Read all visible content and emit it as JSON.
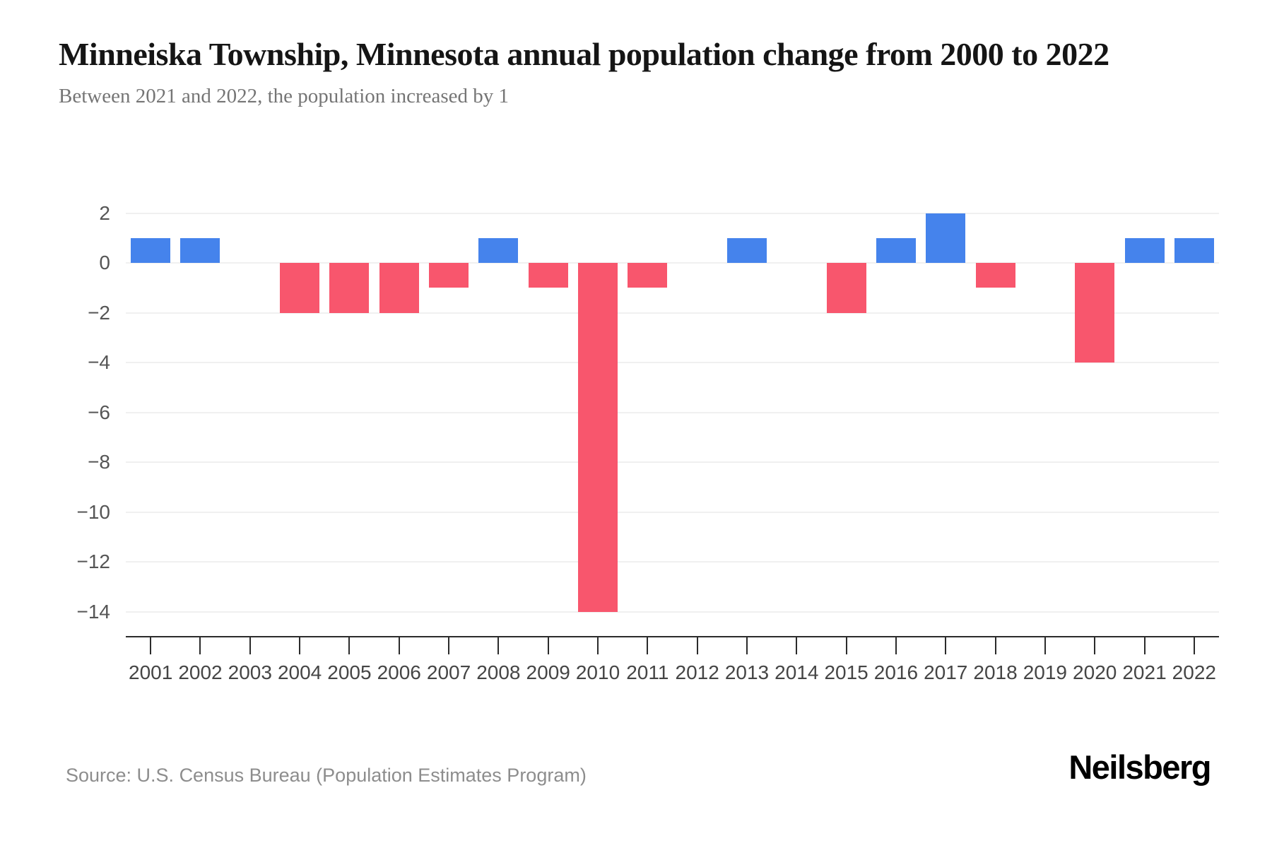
{
  "header": {
    "title": "Minneiska Township, Minnesota annual population change from 2000 to 2022",
    "subtitle": "Between 2021 and 2022, the population increased by 1"
  },
  "chart_data": {
    "type": "bar",
    "title": "Minneiska Township, Minnesota annual population change from 2000 to 2022",
    "xlabel": "",
    "ylabel": "",
    "categories": [
      "2001",
      "2002",
      "2003",
      "2004",
      "2005",
      "2006",
      "2007",
      "2008",
      "2009",
      "2010",
      "2011",
      "2012",
      "2013",
      "2014",
      "2015",
      "2016",
      "2017",
      "2018",
      "2019",
      "2020",
      "2021",
      "2022"
    ],
    "values": [
      1,
      1,
      0,
      -2,
      -2,
      -2,
      -1,
      1,
      -1,
      -14,
      -1,
      0,
      1,
      0,
      -2,
      1,
      2,
      -1,
      0,
      -4,
      1,
      1
    ],
    "ylim": [
      -14,
      2
    ],
    "yticks": [
      2,
      0,
      -2,
      -4,
      -6,
      -8,
      -10,
      -12,
      -14
    ],
    "ytick_labels": [
      "2",
      "0",
      "−2",
      "−4",
      "−6",
      "−8",
      "−10",
      "−12",
      "−14"
    ],
    "grid": true,
    "legend": "none",
    "colors": {
      "positive": "#4583EC",
      "negative": "#F8566D",
      "gridline": "#f0f0f0",
      "axis": "#2b2b2b"
    }
  },
  "footer": {
    "source": "Source: U.S. Census Bureau (Population Estimates Program)",
    "brand": "Neilsberg"
  }
}
